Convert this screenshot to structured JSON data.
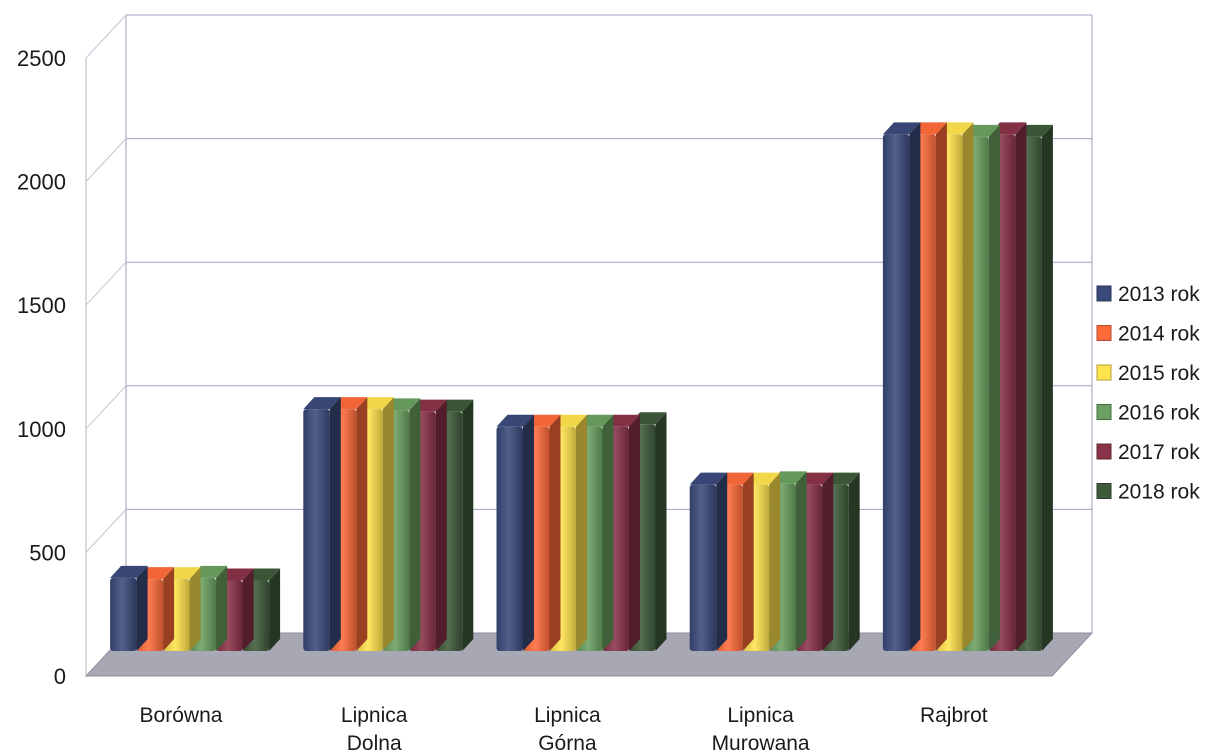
{
  "chart_data": {
    "type": "bar",
    "title": "",
    "xlabel": "",
    "ylabel": "",
    "ylim": [
      0,
      2500
    ],
    "yticks": [
      "0",
      "500",
      "1000",
      "1500",
      "2000",
      "2500"
    ],
    "categories": [
      [
        "Borówna"
      ],
      [
        "Lipnica",
        "Dolna"
      ],
      [
        "Lipnica",
        "Górna"
      ],
      [
        "Lipnica",
        "Murowana"
      ],
      [
        "Rajbrot"
      ]
    ],
    "series": [
      {
        "name": "2013 rok",
        "color": "#3a4a7a",
        "values": [
          290,
          960,
          890,
          660,
          2050
        ]
      },
      {
        "name": "2014 rok",
        "color": "#ff6a3a",
        "values": [
          285,
          960,
          890,
          660,
          2050
        ]
      },
      {
        "name": "2015 rok",
        "color": "#ffe34d",
        "values": [
          285,
          960,
          890,
          660,
          2050
        ]
      },
      {
        "name": "2016 rok",
        "color": "#6aa060",
        "values": [
          290,
          955,
          890,
          665,
          2040
        ]
      },
      {
        "name": "2017 rok",
        "color": "#8a3248",
        "values": [
          280,
          950,
          890,
          660,
          2050
        ]
      },
      {
        "name": "2018 rok",
        "color": "#3e5a3a",
        "values": [
          280,
          950,
          900,
          660,
          2040
        ]
      }
    ],
    "grid": true,
    "legend": "right",
    "style": "3d"
  }
}
